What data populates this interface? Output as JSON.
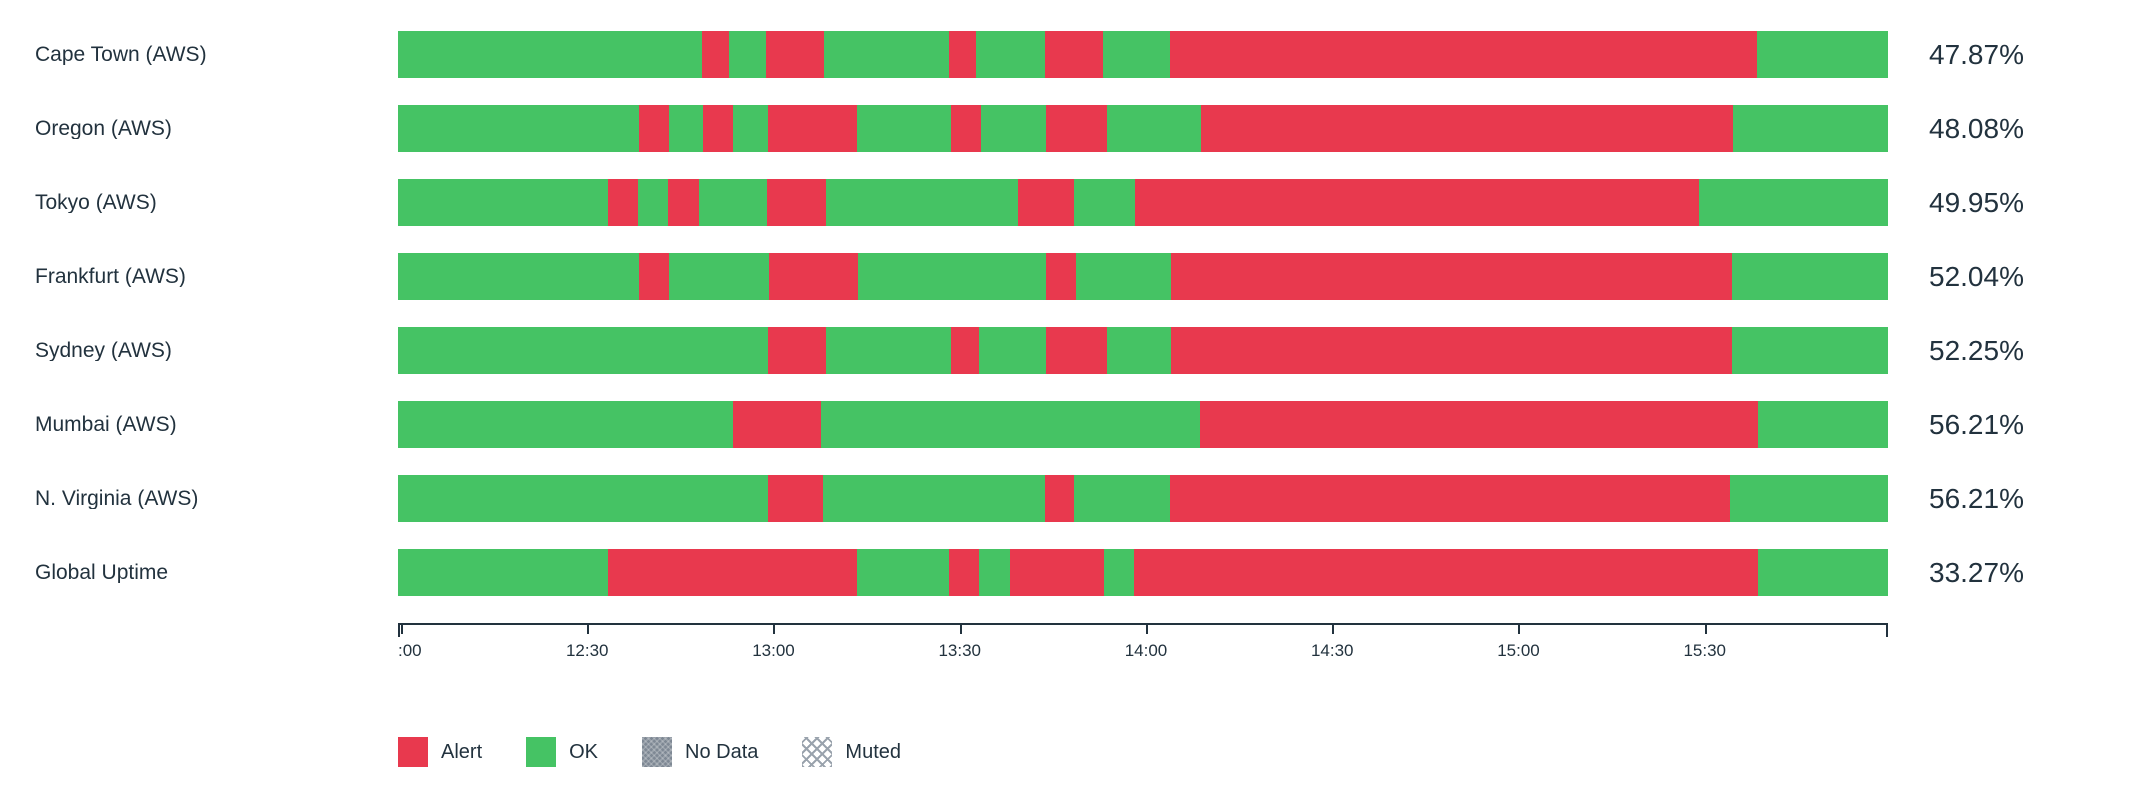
{
  "colors": {
    "alert": "#e8394e",
    "ok": "#45c364",
    "no_data": "#7e8894",
    "muted_hatch": "#9aa3ad",
    "text": "#22323e",
    "axis": "#22323e",
    "background": "#ffffff"
  },
  "legend": {
    "items": [
      {
        "label": "Alert",
        "swatch": "alert"
      },
      {
        "label": "OK",
        "swatch": "ok"
      },
      {
        "label": "No Data",
        "swatch": "no_data"
      },
      {
        "label": "Muted",
        "swatch": "muted"
      }
    ]
  },
  "chart_data": {
    "type": "bar",
    "subtype": "status-timeline-uptime",
    "title": "",
    "xlabel": "",
    "ylabel": "",
    "time_range": {
      "start": "12:00",
      "end": "16:00"
    },
    "x_ticks": [
      {
        "label": ":00",
        "pos_pct": 0.2,
        "edge": true
      },
      {
        "label": "12:30",
        "pos_pct": 12.7,
        "edge": false
      },
      {
        "label": "13:00",
        "pos_pct": 25.2,
        "edge": false
      },
      {
        "label": "13:30",
        "pos_pct": 37.7,
        "edge": false
      },
      {
        "label": "14:00",
        "pos_pct": 50.2,
        "edge": false
      },
      {
        "label": "14:30",
        "pos_pct": 62.7,
        "edge": false
      },
      {
        "label": "15:00",
        "pos_pct": 75.2,
        "edge": false
      },
      {
        "label": "15:30",
        "pos_pct": 87.7,
        "edge": false
      }
    ],
    "end_tick_positions_pct": [
      0,
      100
    ],
    "statuses": {
      "ok": "OK",
      "alert": "Alert",
      "no_data": "No Data",
      "muted": "Muted"
    },
    "rows": [
      {
        "label": "Cape Town (AWS)",
        "uptime": "47.87%",
        "segments": [
          [
            "ok",
            20.4
          ],
          [
            "alert",
            1.8
          ],
          [
            "ok",
            2.5
          ],
          [
            "alert",
            3.9
          ],
          [
            "ok",
            8.4
          ],
          [
            "alert",
            1.8
          ],
          [
            "ok",
            4.6
          ],
          [
            "alert",
            3.9
          ],
          [
            "ok",
            4.5
          ],
          [
            "alert",
            39.4
          ],
          [
            "ok",
            8.8
          ]
        ]
      },
      {
        "label": "Oregon (AWS)",
        "uptime": "48.08%",
        "segments": [
          [
            "ok",
            16.2
          ],
          [
            "alert",
            2.0
          ],
          [
            "ok",
            2.3
          ],
          [
            "alert",
            2.0
          ],
          [
            "ok",
            2.3
          ],
          [
            "alert",
            6.0
          ],
          [
            "ok",
            6.3
          ],
          [
            "alert",
            2.0
          ],
          [
            "ok",
            4.4
          ],
          [
            "alert",
            4.1
          ],
          [
            "ok",
            6.3
          ],
          [
            "alert",
            35.7
          ],
          [
            "ok",
            10.4
          ]
        ]
      },
      {
        "label": "Tokyo (AWS)",
        "uptime": "49.95%",
        "segments": [
          [
            "ok",
            14.1
          ],
          [
            "alert",
            2.0
          ],
          [
            "ok",
            2.0
          ],
          [
            "alert",
            2.1
          ],
          [
            "ok",
            4.6
          ],
          [
            "alert",
            3.9
          ],
          [
            "ok",
            12.9
          ],
          [
            "alert",
            3.8
          ],
          [
            "ok",
            4.1
          ],
          [
            "alert",
            37.8
          ],
          [
            "ok",
            12.7
          ]
        ]
      },
      {
        "label": "Frankfurt (AWS)",
        "uptime": "52.04%",
        "segments": [
          [
            "ok",
            16.2
          ],
          [
            "alert",
            2.0
          ],
          [
            "ok",
            6.7
          ],
          [
            "alert",
            6.0
          ],
          [
            "ok",
            12.6
          ],
          [
            "alert",
            2.0
          ],
          [
            "ok",
            6.4
          ],
          [
            "alert",
            37.6
          ],
          [
            "ok",
            10.5
          ]
        ]
      },
      {
        "label": "Sydney (AWS)",
        "uptime": "52.25%",
        "segments": [
          [
            "ok",
            24.8
          ],
          [
            "alert",
            3.9
          ],
          [
            "ok",
            8.4
          ],
          [
            "alert",
            1.9
          ],
          [
            "ok",
            4.5
          ],
          [
            "alert",
            4.1
          ],
          [
            "ok",
            4.3
          ],
          [
            "alert",
            37.6
          ],
          [
            "ok",
            10.5
          ]
        ]
      },
      {
        "label": "Mumbai (AWS)",
        "uptime": "56.21%",
        "segments": [
          [
            "ok",
            22.5
          ],
          [
            "alert",
            5.9
          ],
          [
            "ok",
            25.4
          ],
          [
            "alert",
            37.5
          ],
          [
            "ok",
            8.7
          ]
        ]
      },
      {
        "label": "N. Virginia (AWS)",
        "uptime": "56.21%",
        "segments": [
          [
            "ok",
            24.8
          ],
          [
            "alert",
            3.7
          ],
          [
            "ok",
            14.9
          ],
          [
            "alert",
            2.0
          ],
          [
            "ok",
            6.4
          ],
          [
            "alert",
            37.6
          ],
          [
            "ok",
            10.6
          ]
        ]
      },
      {
        "label": "Global Uptime",
        "uptime": "33.27%",
        "segments": [
          [
            "ok",
            14.1
          ],
          [
            "alert",
            16.7
          ],
          [
            "ok",
            6.2
          ],
          [
            "alert",
            2.0
          ],
          [
            "ok",
            2.1
          ],
          [
            "alert",
            6.3
          ],
          [
            "ok",
            2.0
          ],
          [
            "alert",
            41.9
          ],
          [
            "ok",
            8.7
          ]
        ]
      }
    ]
  }
}
